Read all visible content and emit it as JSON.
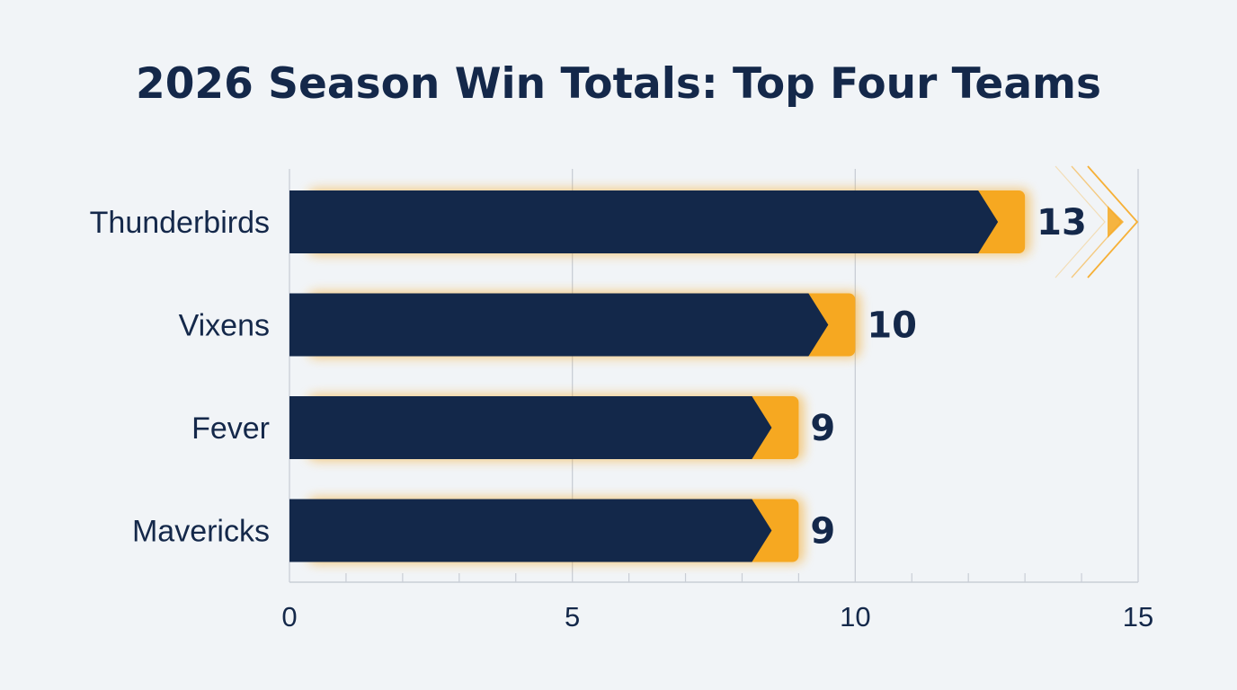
{
  "chart_data": {
    "type": "bar",
    "orientation": "horizontal",
    "title": "2026 Season Win Totals: Top Four Teams",
    "categories": [
      "Thunderbirds",
      "Vixens",
      "Fever",
      "Mavericks"
    ],
    "values": [
      13,
      10,
      9,
      9
    ],
    "data_labels": [
      "13",
      "10",
      "9",
      "9"
    ],
    "xlim": [
      0,
      15
    ],
    "x_ticks": [
      0,
      5,
      10,
      15
    ],
    "x_tick_labels": [
      "0",
      "5",
      "10",
      "15"
    ],
    "xlabel": "",
    "ylabel": "",
    "grid": true,
    "legend": "none",
    "colors": {
      "bar": "#13284a",
      "accent": "#f6a821",
      "text": "#14284a",
      "grid": "#c9ced6",
      "background": "#f1f4f7"
    }
  }
}
